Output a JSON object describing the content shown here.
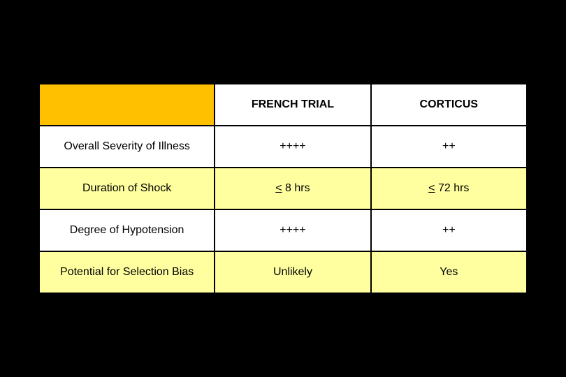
{
  "table": {
    "type": "table",
    "columns": [
      "",
      "FRENCH TRIAL",
      "CORTICUS"
    ],
    "column_widths_pct": [
      36,
      32,
      32
    ],
    "header_bg_blank": "#ffc000",
    "header_bg": "#ffffff",
    "row_alt_bg": [
      "#ffffff",
      "#ffffa0"
    ],
    "border_color": "#000000",
    "font_family": "Arial",
    "header_fontsize": 16,
    "cell_fontsize": 16,
    "rows": [
      {
        "label": "Overall Severity of Illness",
        "french": "++++",
        "corticus": "++"
      },
      {
        "label": "Duration of Shock",
        "french": "",
        "corticus": ""
      },
      {
        "label": "Degree of Hypotension",
        "french": "++++",
        "corticus": "++"
      },
      {
        "label": "Potential for Selection Bias",
        "french": "Unlikely",
        "corticus": "Yes"
      }
    ],
    "duration_row": {
      "french_prefix": "<",
      "french_rest": " 8 hrs",
      "corticus_prefix": "<",
      "corticus_rest": " 72 hrs"
    }
  },
  "page_bg": "#000000"
}
